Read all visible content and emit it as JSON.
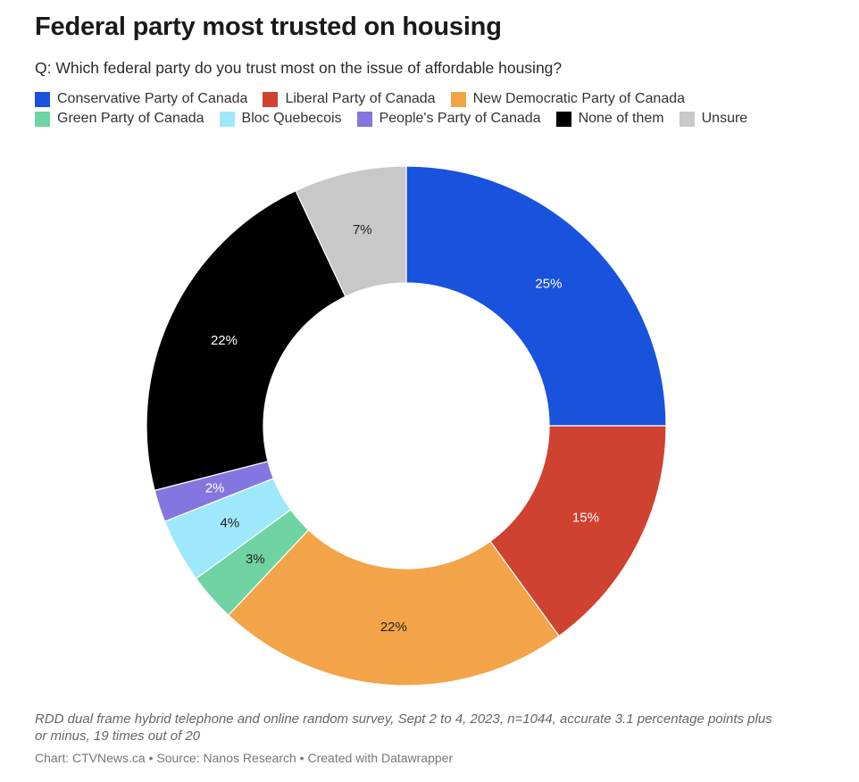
{
  "title": "Federal party most trusted on housing",
  "subtitle": "Q: Which federal party do you trust most on the issue of affordable housing?",
  "notes": "RDD dual frame hybrid telephone and online random survey, Sept 2 to 4, 2023, n=1044, accurate 3.1 percentage points plus or minus, 19 times out of 20",
  "byline": "Chart: CTVNews.ca • Source: Nanos Research • Created with Datawrapper",
  "chart_data": {
    "type": "pie",
    "donut": true,
    "legend_placement": "top",
    "slices": [
      {
        "label": "Conservative Party of Canada",
        "value": 25,
        "display": "25%",
        "color": "#1852dd",
        "label_color": "#ffffff"
      },
      {
        "label": "Liberal Party of Canada",
        "value": 15,
        "display": "15%",
        "color": "#cf4130",
        "label_color": "#ffffff"
      },
      {
        "label": "New Democratic Party of Canada",
        "value": 22,
        "display": "22%",
        "color": "#f3a448",
        "label_color": "#222222"
      },
      {
        "label": "Green Party of Canada",
        "value": 3,
        "display": "3%",
        "color": "#6fd3a2",
        "label_color": "#222222"
      },
      {
        "label": "Bloc Quebecois",
        "value": 4,
        "display": "4%",
        "color": "#9ee8fb",
        "label_color": "#222222"
      },
      {
        "label": "People's Party of Canada",
        "value": 2,
        "display": "2%",
        "color": "#8476e0",
        "label_color": "#ffffff"
      },
      {
        "label": "None of them",
        "value": 22,
        "display": "22%",
        "color": "#000000",
        "label_color": "#ffffff"
      },
      {
        "label": "Unsure",
        "value": 7,
        "display": "7%",
        "color": "#c8c8c8",
        "label_color": "#222222"
      }
    ]
  }
}
